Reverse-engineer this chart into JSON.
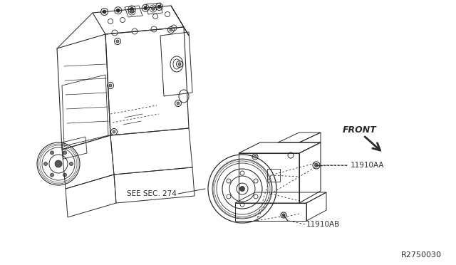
{
  "bg_color": "#ffffff",
  "line_color": "#2a2a2a",
  "diagram_code": "R2750030",
  "label_11910AA": "11910AA",
  "label_11910AB": "11910AB",
  "label_see_sec": "SEE SEC. 274",
  "label_front": "FRONT",
  "font_size_labels": 7.5,
  "font_size_code": 8,
  "engine_color": "#1a1a1a",
  "comp_color": "#1a1a1a"
}
